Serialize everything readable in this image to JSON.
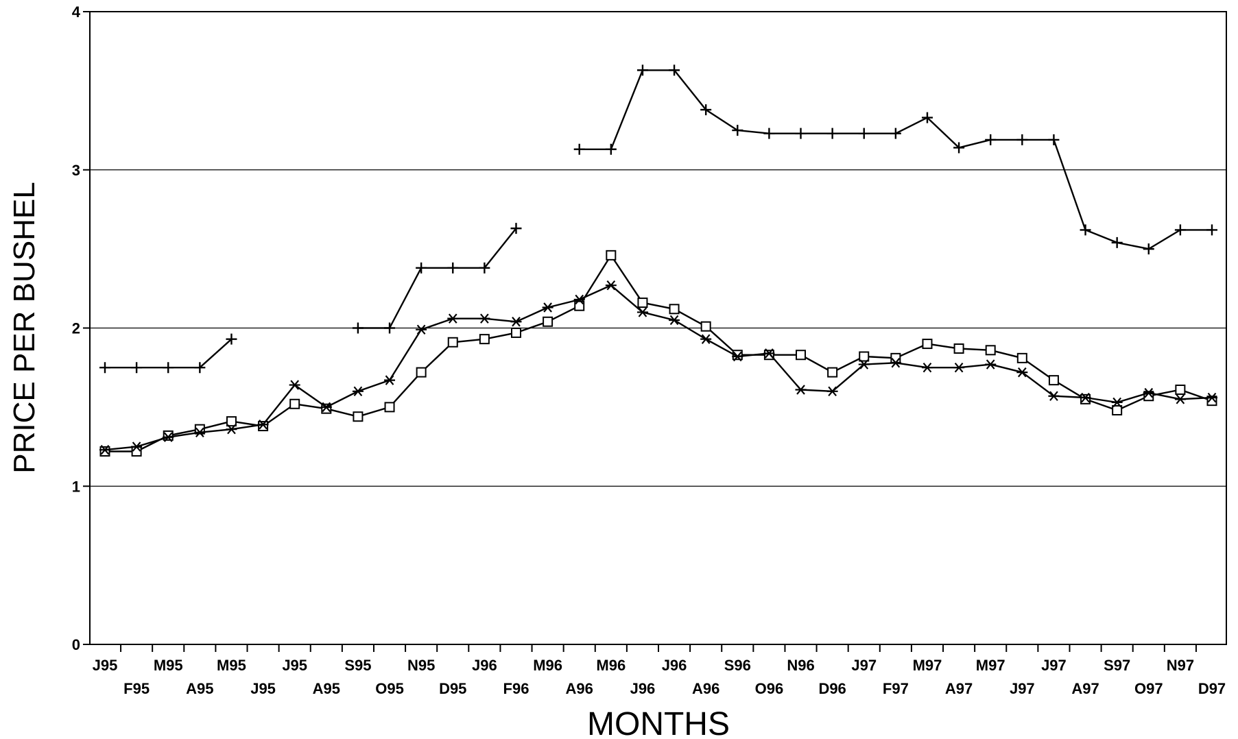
{
  "chart_data": {
    "type": "line",
    "title": "",
    "xlabel": "MONTHS",
    "ylabel": "PRICE PER BUSHEL",
    "ylim": [
      0,
      4
    ],
    "y_ticks": [
      "0",
      "1",
      "2",
      "3",
      "4"
    ],
    "grid": "horizontal",
    "categories": [
      "J95",
      "F95",
      "M95",
      "A95",
      "M95",
      "J95",
      "J95",
      "A95",
      "S95",
      "O95",
      "N95",
      "D95",
      "J96",
      "F96",
      "M96",
      "A96",
      "M96",
      "J96",
      "J96",
      "A96",
      "S96",
      "O96",
      "N96",
      "D96",
      "J97",
      "F97",
      "M97",
      "A97",
      "M97",
      "J97",
      "J97",
      "A97",
      "S97",
      "O97",
      "N97",
      "D97"
    ],
    "series": [
      {
        "marker": "plus",
        "values": [
          1.75,
          1.75,
          1.75,
          1.75,
          1.93,
          null,
          null,
          null,
          2.0,
          2.0,
          2.38,
          2.38,
          2.38,
          2.63,
          null,
          3.13,
          3.13,
          3.63,
          3.63,
          3.38,
          3.25,
          3.23,
          3.23,
          3.23,
          3.23,
          3.23,
          3.33,
          3.14,
          3.19,
          3.19,
          3.19,
          2.62,
          2.54,
          2.5,
          2.62,
          2.62
        ]
      },
      {
        "marker": "square",
        "values": [
          1.22,
          1.22,
          1.32,
          1.36,
          1.41,
          1.38,
          1.52,
          1.49,
          1.44,
          1.5,
          1.72,
          1.91,
          1.93,
          1.97,
          2.04,
          2.14,
          2.46,
          2.16,
          2.12,
          2.01,
          1.83,
          1.83,
          1.83,
          1.72,
          1.82,
          1.81,
          1.9,
          1.87,
          1.86,
          1.81,
          1.67,
          1.55,
          1.48,
          1.57,
          1.61,
          1.54
        ]
      },
      {
        "marker": "asterisk",
        "values": [
          1.23,
          1.25,
          1.31,
          1.34,
          1.36,
          1.39,
          1.64,
          1.5,
          1.6,
          1.67,
          1.99,
          2.06,
          2.06,
          2.04,
          2.13,
          2.18,
          2.27,
          2.1,
          2.05,
          1.93,
          1.82,
          1.84,
          1.61,
          1.6,
          1.77,
          1.78,
          1.75,
          1.75,
          1.77,
          1.72,
          1.57,
          1.56,
          1.53,
          1.59,
          1.55,
          1.56
        ]
      }
    ]
  }
}
